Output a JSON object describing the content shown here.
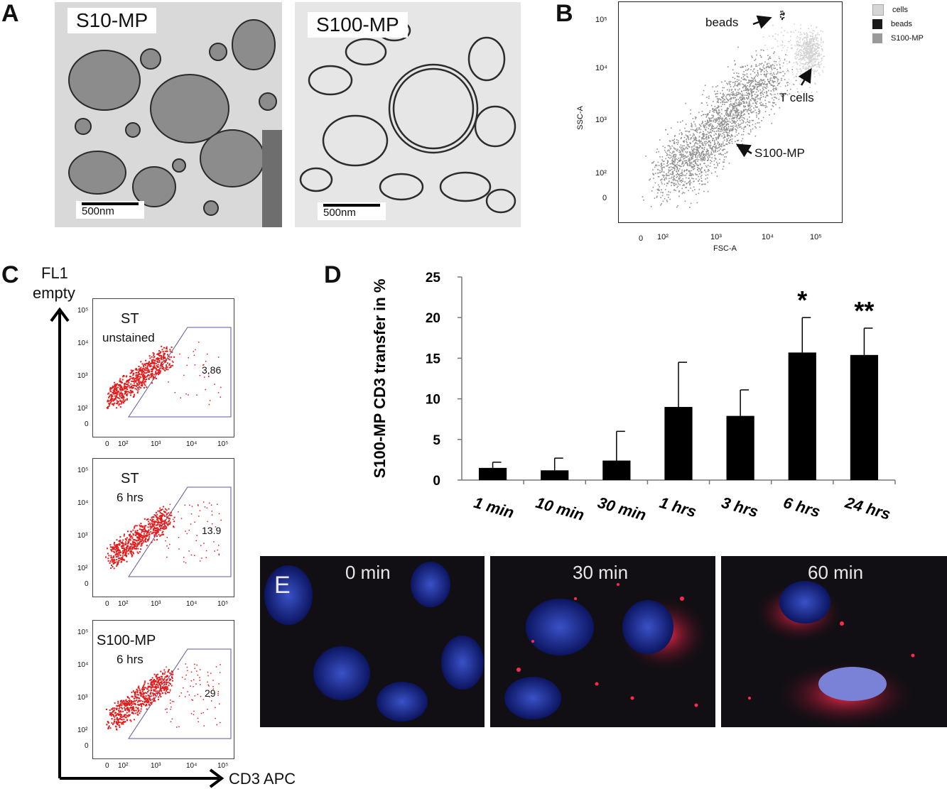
{
  "panels": {
    "A": {
      "label": "A",
      "images": [
        {
          "tag": "S10-MP",
          "scale": "500nm"
        },
        {
          "tag": "S100-MP",
          "scale": "500nm"
        }
      ]
    },
    "B": {
      "label": "B",
      "xlabel": "FSC-A",
      "ylabel": "SSC-A",
      "x_ticks": [
        "0",
        "10²",
        "10³",
        "10⁴",
        "10⁵"
      ],
      "y_ticks": [
        "10⁵",
        "10⁴",
        "10³",
        "10²",
        "0"
      ],
      "legend": [
        {
          "name": "cells",
          "color": "#d6d6d6"
        },
        {
          "name": "beads",
          "color": "#1a1a1a"
        },
        {
          "name": "S100-MP",
          "color": "#9a9a9a"
        }
      ],
      "annotations": {
        "beads": "beads",
        "tcells": "T cells",
        "mp": "S100-MP"
      }
    },
    "C": {
      "label": "C",
      "y_axis_label_line1": "FL1",
      "y_axis_label_line2": "empty",
      "x_axis_label": "CD3 APC",
      "x_ticks": [
        "0",
        "10²",
        "10³",
        "10⁴",
        "10⁵"
      ],
      "y_ticks": [
        "10⁵",
        "10⁴",
        "10³",
        "10²",
        "0"
      ],
      "plots": [
        {
          "title1": "ST",
          "title2": "unstained",
          "gate_value": "3.86"
        },
        {
          "title1": "ST",
          "title2": "6 hrs",
          "gate_value": "13.9"
        },
        {
          "title1": "S100-MP",
          "title2": "6 hrs",
          "gate_value": "29"
        }
      ]
    },
    "D": {
      "label": "D"
    },
    "E": {
      "label": "E",
      "images": [
        {
          "time": "0 min"
        },
        {
          "time": "30 min"
        },
        {
          "time": "60 min"
        }
      ]
    }
  },
  "chart_data": {
    "type": "bar",
    "title": "",
    "xlabel": "",
    "ylabel": "S100-MP CD3 transfer in %",
    "ylim": [
      0,
      25
    ],
    "y_ticks": [
      0,
      5,
      10,
      15,
      20,
      25
    ],
    "categories": [
      "1 min",
      "10 min",
      "30 min",
      "1 hrs",
      "3 hrs",
      "6 hrs",
      "24 hrs"
    ],
    "values": [
      1.5,
      1.2,
      2.4,
      9.0,
      7.9,
      15.7,
      15.4
    ],
    "error_upper": [
      2.2,
      2.7,
      6.0,
      14.5,
      11.1,
      20.0,
      18.7
    ],
    "significance": [
      "",
      "",
      "",
      "",
      "",
      "*",
      "**"
    ],
    "bar_color": "#000000"
  }
}
